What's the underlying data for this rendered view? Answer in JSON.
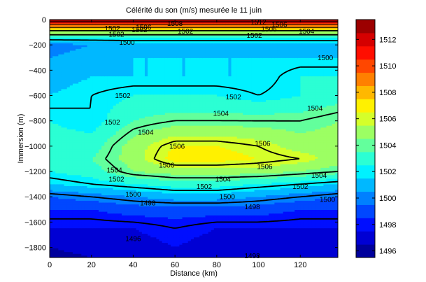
{
  "chart_data": {
    "type": "heatmap",
    "title": "Célérité du son (m/s) mesurée le 11 juin",
    "xlabel": "Distance (km)",
    "ylabel": "Immersion (m)",
    "xlim": [
      0,
      138
    ],
    "ylim": [
      -1880,
      0
    ],
    "xticks": [
      0,
      20,
      40,
      60,
      80,
      100,
      120
    ],
    "yticks": [
      0,
      -200,
      -400,
      -600,
      -800,
      -1000,
      -1200,
      -1400,
      -1600,
      -1800
    ],
    "colorbar": {
      "min": 1495.5,
      "max": 1513.5,
      "ticks": [
        1496,
        1498,
        1500,
        1502,
        1504,
        1506,
        1508,
        1510,
        1512
      ],
      "colormap": "jet"
    },
    "grid_x_km": [
      0,
      20,
      40,
      60,
      80,
      100,
      120,
      138
    ],
    "grid_depth_m": [
      0,
      -50,
      -100,
      -150,
      -200,
      -300,
      -450,
      -600,
      -800,
      -1000,
      -1100,
      -1200,
      -1300,
      -1400,
      -1500,
      -1650,
      -1800,
      -1880
    ],
    "grid_values": [
      [
        1513.5,
        1513.5,
        1513.5,
        1513.5,
        1513.5,
        1513.5,
        1513.5,
        1513.5
      ],
      [
        1509.0,
        1509.0,
        1509.0,
        1509.0,
        1509.0,
        1509.0,
        1509.0,
        1509.0
      ],
      [
        1505.0,
        1505.0,
        1505.0,
        1505.0,
        1505.0,
        1505.0,
        1505.0,
        1505.0
      ],
      [
        1502.5,
        1502.5,
        1502.5,
        1502.5,
        1502.5,
        1502.5,
        1502.5,
        1502.5
      ],
      [
        1500.0,
        1500.5,
        1501.0,
        1501.0,
        1501.0,
        1501.0,
        1501.0,
        1501.0
      ],
      [
        1500.5,
        1501.0,
        1501.5,
        1501.5,
        1501.5,
        1501.5,
        1501.5,
        1501.5
      ],
      [
        1501.0,
        1501.5,
        1501.5,
        1501.5,
        1501.5,
        1501.5,
        1502.5,
        1502.5
      ],
      [
        1501.5,
        1502.0,
        1502.5,
        1502.5,
        1502.5,
        1502.0,
        1502.5,
        1503.0
      ],
      [
        1502.5,
        1502.0,
        1503.5,
        1504.0,
        1504.0,
        1504.0,
        1504.0,
        1504.5
      ],
      [
        1503.0,
        1503.0,
        1505.0,
        1506.5,
        1506.5,
        1506.0,
        1505.0,
        1505.0
      ],
      [
        1503.0,
        1503.5,
        1505.0,
        1507.0,
        1507.0,
        1506.5,
        1506.0,
        1505.0
      ],
      [
        1502.5,
        1503.0,
        1504.5,
        1505.0,
        1505.0,
        1505.0,
        1504.5,
        1504.0
      ],
      [
        1501.5,
        1502.0,
        1502.5,
        1503.0,
        1503.0,
        1502.5,
        1502.0,
        1501.5
      ],
      [
        1499.5,
        1500.0,
        1500.5,
        1501.0,
        1501.0,
        1500.5,
        1500.0,
        1499.5
      ],
      [
        1498.5,
        1498.5,
        1499.0,
        1499.0,
        1499.0,
        1499.0,
        1498.5,
        1498.5
      ],
      [
        1497.5,
        1497.5,
        1497.5,
        1498.0,
        1497.5,
        1497.5,
        1497.5,
        1497.5
      ],
      [
        1496.5,
        1497.0,
        1497.0,
        1497.5,
        1497.0,
        1497.0,
        1497.0,
        1497.0
      ],
      [
        1496.0,
        1496.5,
        1497.0,
        1497.0,
        1497.5,
        1497.0,
        1497.0,
        1497.0
      ]
    ],
    "contour_labels": [
      {
        "text": "1512",
        "x": 100,
        "y": -18
      },
      {
        "text": "1506",
        "x": 110,
        "y": -40
      },
      {
        "text": "1508",
        "x": 60,
        "y": -30
      },
      {
        "text": "1502",
        "x": 30,
        "y": -70
      },
      {
        "text": "1502",
        "x": 43,
        "y": -80
      },
      {
        "text": "1506",
        "x": 45,
        "y": -60
      },
      {
        "text": "1502",
        "x": 65,
        "y": -90
      },
      {
        "text": "1506",
        "x": 105,
        "y": -75
      },
      {
        "text": "1504",
        "x": 123,
        "y": -90
      },
      {
        "text": "1502",
        "x": 32,
        "y": -115
      },
      {
        "text": "1502",
        "x": 98,
        "y": -125
      },
      {
        "text": "1500",
        "x": 37,
        "y": -180
      },
      {
        "text": "1502",
        "x": 35,
        "y": -600
      },
      {
        "text": "1502",
        "x": 88,
        "y": -610
      },
      {
        "text": "1500",
        "x": 132,
        "y": -300
      },
      {
        "text": "1502",
        "x": 30,
        "y": -810
      },
      {
        "text": "1504",
        "x": 82,
        "y": -740
      },
      {
        "text": "1504",
        "x": 127,
        "y": -700
      },
      {
        "text": "1504",
        "x": 46,
        "y": -890
      },
      {
        "text": "1506",
        "x": 61,
        "y": -1000
      },
      {
        "text": "1506",
        "x": 102,
        "y": -980
      },
      {
        "text": "1506",
        "x": 56,
        "y": -1150
      },
      {
        "text": "1506",
        "x": 103,
        "y": -1160
      },
      {
        "text": "1504",
        "x": 31,
        "y": -1190
      },
      {
        "text": "1504",
        "x": 83,
        "y": -1260
      },
      {
        "text": "1504",
        "x": 129,
        "y": -1230
      },
      {
        "text": "1502",
        "x": 32,
        "y": -1260
      },
      {
        "text": "1502",
        "x": 74,
        "y": -1320
      },
      {
        "text": "1502",
        "x": 120,
        "y": -1320
      },
      {
        "text": "1500",
        "x": 40,
        "y": -1380
      },
      {
        "text": "1500",
        "x": 85,
        "y": -1400
      },
      {
        "text": "1500",
        "x": 133,
        "y": -1420
      },
      {
        "text": "1498",
        "x": 47,
        "y": -1450
      },
      {
        "text": "1498",
        "x": 97,
        "y": -1480
      },
      {
        "text": "1496",
        "x": 40,
        "y": -1730
      },
      {
        "text": "1498",
        "x": 97,
        "y": -1865
      }
    ]
  }
}
